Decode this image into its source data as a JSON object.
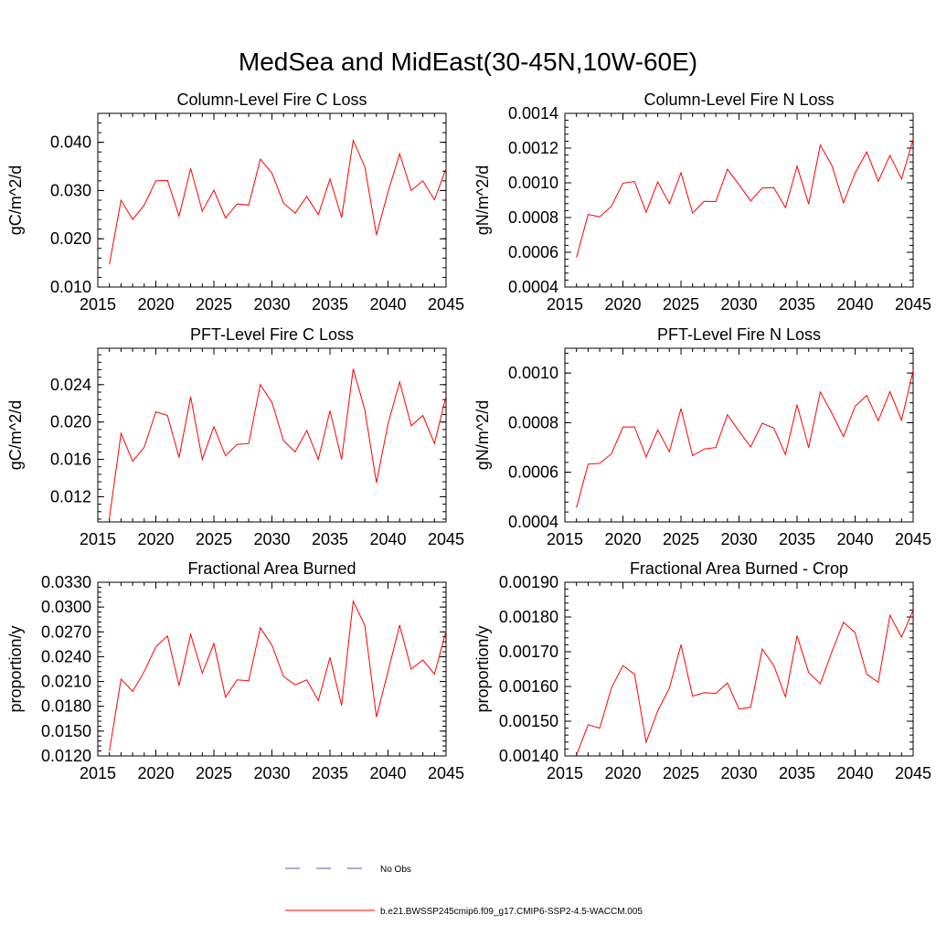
{
  "figure_title": "MedSea and MidEast(30-45N,10W-60E)",
  "colors": {
    "series": "#ff0000",
    "no_obs": "#5a5aa0",
    "axis": "#000000"
  },
  "legend": {
    "no_obs_label": "No Obs",
    "model_label": "b.e21.BWSSP245cmip6.f09_g17.CMIP6-SSP2-4.5-WACCM.005"
  },
  "chart_data": [
    {
      "type": "line",
      "title": "Column-Level Fire C Loss",
      "ylabel": "gC/m^2/d",
      "xlabel": "",
      "xlim": [
        2015,
        2045
      ],
      "ylim": [
        0.01,
        0.046
      ],
      "xticks": [
        2015,
        2020,
        2025,
        2030,
        2035,
        2040,
        2045
      ],
      "xtick_labels": [
        "2015",
        "2020",
        "2025",
        "2030",
        "2035",
        "2040",
        "2045"
      ],
      "yticks": [
        0.01,
        0.02,
        0.03,
        0.04
      ],
      "ytick_labels": [
        "0.010",
        "0.020",
        "0.030",
        "0.040"
      ],
      "x": [
        2016,
        2017,
        2018,
        2019,
        2020,
        2021,
        2022,
        2023,
        2024,
        2025,
        2026,
        2027,
        2028,
        2029,
        2030,
        2031,
        2032,
        2033,
        2034,
        2035,
        2036,
        2037,
        2038,
        2039,
        2040,
        2041,
        2042,
        2043,
        2044,
        2045
      ],
      "series": [
        {
          "name": "b.e21.BWSSP245cmip6.f09_g17.CMIP6-SSP2-4.5-WACCM.005",
          "values": [
            0.0147,
            0.028,
            0.024,
            0.027,
            0.032,
            0.0321,
            0.0247,
            0.0346,
            0.0257,
            0.0301,
            0.0243,
            0.0272,
            0.027,
            0.0365,
            0.0336,
            0.0274,
            0.0253,
            0.0288,
            0.025,
            0.0324,
            0.0244,
            0.0404,
            0.0349,
            0.0208,
            0.0297,
            0.0376,
            0.03,
            0.032,
            0.0281,
            0.0346
          ]
        }
      ]
    },
    {
      "type": "line",
      "title": "Column-Level Fire N Loss",
      "ylabel": "gN/m^2/d",
      "xlabel": "",
      "xlim": [
        2015,
        2045
      ],
      "ylim": [
        0.0004,
        0.0014
      ],
      "xticks": [
        2015,
        2020,
        2025,
        2030,
        2035,
        2040,
        2045
      ],
      "xtick_labels": [
        "2015",
        "2020",
        "2025",
        "2030",
        "2035",
        "2040",
        "2045"
      ],
      "yticks": [
        0.0004,
        0.0006,
        0.0008,
        0.001,
        0.0012,
        0.0014
      ],
      "ytick_labels": [
        "0.0004",
        "0.0006",
        "0.0008",
        "0.0010",
        "0.0012",
        "0.0014"
      ],
      "x": [
        2016,
        2017,
        2018,
        2019,
        2020,
        2021,
        2022,
        2023,
        2024,
        2025,
        2026,
        2027,
        2028,
        2029,
        2030,
        2031,
        2032,
        2033,
        2034,
        2035,
        2036,
        2037,
        2038,
        2039,
        2040,
        2041,
        2042,
        2043,
        2044,
        2045
      ],
      "series": [
        {
          "name": "b.e21.BWSSP245cmip6.f09_g17.CMIP6-SSP2-4.5-WACCM.005",
          "values": [
            0.00057,
            0.000818,
            0.000804,
            0.000865,
            0.000998,
            0.001008,
            0.00083,
            0.001005,
            0.00088,
            0.001058,
            0.000826,
            0.000893,
            0.000892,
            0.001078,
            0.00099,
            0.000896,
            0.00097,
            0.000972,
            0.000857,
            0.001096,
            0.000878,
            0.001217,
            0.0011,
            0.000884,
            0.001057,
            0.001178,
            0.001009,
            0.001158,
            0.001022,
            0.001252
          ]
        }
      ]
    },
    {
      "type": "line",
      "title": "PFT-Level Fire C Loss",
      "ylabel": "gC/m^2/d",
      "xlabel": "",
      "xlim": [
        2015,
        2045
      ],
      "ylim": [
        0.0093,
        0.0279
      ],
      "xticks": [
        2015,
        2020,
        2025,
        2030,
        2035,
        2040,
        2045
      ],
      "xtick_labels": [
        "2015",
        "2020",
        "2025",
        "2030",
        "2035",
        "2040",
        "2045"
      ],
      "yticks": [
        0.012,
        0.016,
        0.02,
        0.024
      ],
      "ytick_labels": [
        "0.012",
        "0.016",
        "0.020",
        "0.024"
      ],
      "x": [
        2016,
        2017,
        2018,
        2019,
        2020,
        2021,
        2022,
        2023,
        2024,
        2025,
        2026,
        2027,
        2028,
        2029,
        2030,
        2031,
        2032,
        2033,
        2034,
        2035,
        2036,
        2037,
        2038,
        2039,
        2040,
        2041,
        2042,
        2043,
        2044,
        2045
      ],
      "series": [
        {
          "name": "b.e21.BWSSP245cmip6.f09_g17.CMIP6-SSP2-4.5-WACCM.005",
          "values": [
            0.0097,
            0.0188,
            0.0158,
            0.0173,
            0.0211,
            0.0207,
            0.0162,
            0.0227,
            0.016,
            0.0195,
            0.0164,
            0.0176,
            0.0177,
            0.024,
            0.0221,
            0.018,
            0.0168,
            0.0191,
            0.016,
            0.0212,
            0.016,
            0.0257,
            0.0213,
            0.0135,
            0.0198,
            0.0243,
            0.0196,
            0.0207,
            0.0177,
            0.0228
          ]
        }
      ]
    },
    {
      "type": "line",
      "title": "PFT-Level Fire N Loss",
      "ylabel": "gN/m^2/d",
      "xlabel": "",
      "xlim": [
        2015,
        2045
      ],
      "ylim": [
        0.0004,
        0.0011
      ],
      "xticks": [
        2015,
        2020,
        2025,
        2030,
        2035,
        2040,
        2045
      ],
      "xtick_labels": [
        "2015",
        "2020",
        "2025",
        "2030",
        "2035",
        "2040",
        "2045"
      ],
      "yticks": [
        0.0004,
        0.0006,
        0.0008,
        0.001
      ],
      "ytick_labels": [
        "0.0004",
        "0.0006",
        "0.0008",
        "0.0010"
      ],
      "x": [
        2016,
        2017,
        2018,
        2019,
        2020,
        2021,
        2022,
        2023,
        2024,
        2025,
        2026,
        2027,
        2028,
        2029,
        2030,
        2031,
        2032,
        2033,
        2034,
        2035,
        2036,
        2037,
        2038,
        2039,
        2040,
        2041,
        2042,
        2043,
        2044,
        2045
      ],
      "series": [
        {
          "name": "b.e21.BWSSP245cmip6.f09_g17.CMIP6-SSP2-4.5-WACCM.005",
          "values": [
            0.000458,
            0.000633,
            0.000636,
            0.000674,
            0.000782,
            0.000783,
            0.000662,
            0.000771,
            0.000683,
            0.000857,
            0.000667,
            0.000694,
            0.0007,
            0.000832,
            0.000766,
            0.000702,
            0.000798,
            0.000778,
            0.000672,
            0.000872,
            0.000699,
            0.000924,
            0.000838,
            0.000744,
            0.000866,
            0.00091,
            0.000808,
            0.000925,
            0.00081,
            0.00101
          ]
        }
      ]
    },
    {
      "type": "line",
      "title": "Fractional Area Burned",
      "ylabel": "proportion/y",
      "xlabel": "",
      "xlim": [
        2015,
        2045
      ],
      "ylim": [
        0.012,
        0.033
      ],
      "xticks": [
        2015,
        2020,
        2025,
        2030,
        2035,
        2040,
        2045
      ],
      "xtick_labels": [
        "2015",
        "2020",
        "2025",
        "2030",
        "2035",
        "2040",
        "2045"
      ],
      "yticks": [
        0.012,
        0.015,
        0.018,
        0.021,
        0.024,
        0.027,
        0.03,
        0.033
      ],
      "ytick_labels": [
        "0.0120",
        "0.0150",
        "0.0180",
        "0.0210",
        "0.0240",
        "0.0270",
        "0.0300",
        "0.0330"
      ],
      "x": [
        2016,
        2017,
        2018,
        2019,
        2020,
        2021,
        2022,
        2023,
        2024,
        2025,
        2026,
        2027,
        2028,
        2029,
        2030,
        2031,
        2032,
        2033,
        2034,
        2035,
        2036,
        2037,
        2038,
        2039,
        2040,
        2041,
        2042,
        2043,
        2044,
        2045
      ],
      "series": [
        {
          "name": "b.e21.BWSSP245cmip6.f09_g17.CMIP6-SSP2-4.5-WACCM.005",
          "values": [
            0.0126,
            0.0213,
            0.0198,
            0.0222,
            0.0252,
            0.0265,
            0.0205,
            0.0267,
            0.022,
            0.0256,
            0.0191,
            0.0212,
            0.0211,
            0.0275,
            0.0254,
            0.0216,
            0.0206,
            0.0212,
            0.0187,
            0.0239,
            0.0181,
            0.0307,
            0.0278,
            0.0167,
            0.0222,
            0.0278,
            0.0225,
            0.0236,
            0.0219,
            0.0271
          ]
        }
      ]
    },
    {
      "type": "line",
      "title": "Fractional Area Burned - Crop",
      "ylabel": "proportion/y",
      "xlabel": "",
      "xlim": [
        2015,
        2045
      ],
      "ylim": [
        0.0014,
        0.0019
      ],
      "xticks": [
        2015,
        2020,
        2025,
        2030,
        2035,
        2040,
        2045
      ],
      "xtick_labels": [
        "2015",
        "2020",
        "2025",
        "2030",
        "2035",
        "2040",
        "2045"
      ],
      "yticks": [
        0.0014,
        0.0015,
        0.0016,
        0.0017,
        0.0018,
        0.0019
      ],
      "ytick_labels": [
        "0.00140",
        "0.00150",
        "0.00160",
        "0.00170",
        "0.00180",
        "0.00190"
      ],
      "x": [
        2016,
        2017,
        2018,
        2019,
        2020,
        2021,
        2022,
        2023,
        2024,
        2025,
        2026,
        2027,
        2028,
        2029,
        2030,
        2031,
        2032,
        2033,
        2034,
        2035,
        2036,
        2037,
        2038,
        2039,
        2040,
        2041,
        2042,
        2043,
        2044,
        2045
      ],
      "series": [
        {
          "name": "b.e21.BWSSP245cmip6.f09_g17.CMIP6-SSP2-4.5-WACCM.005",
          "values": [
            0.001403,
            0.00149,
            0.00148,
            0.001595,
            0.00166,
            0.001635,
            0.00144,
            0.00153,
            0.001595,
            0.00172,
            0.001572,
            0.001582,
            0.00158,
            0.00161,
            0.001535,
            0.00154,
            0.001708,
            0.00166,
            0.00157,
            0.001746,
            0.00164,
            0.001608,
            0.0017,
            0.001785,
            0.001755,
            0.001635,
            0.001612,
            0.001805,
            0.001742,
            0.00182
          ]
        }
      ]
    }
  ]
}
